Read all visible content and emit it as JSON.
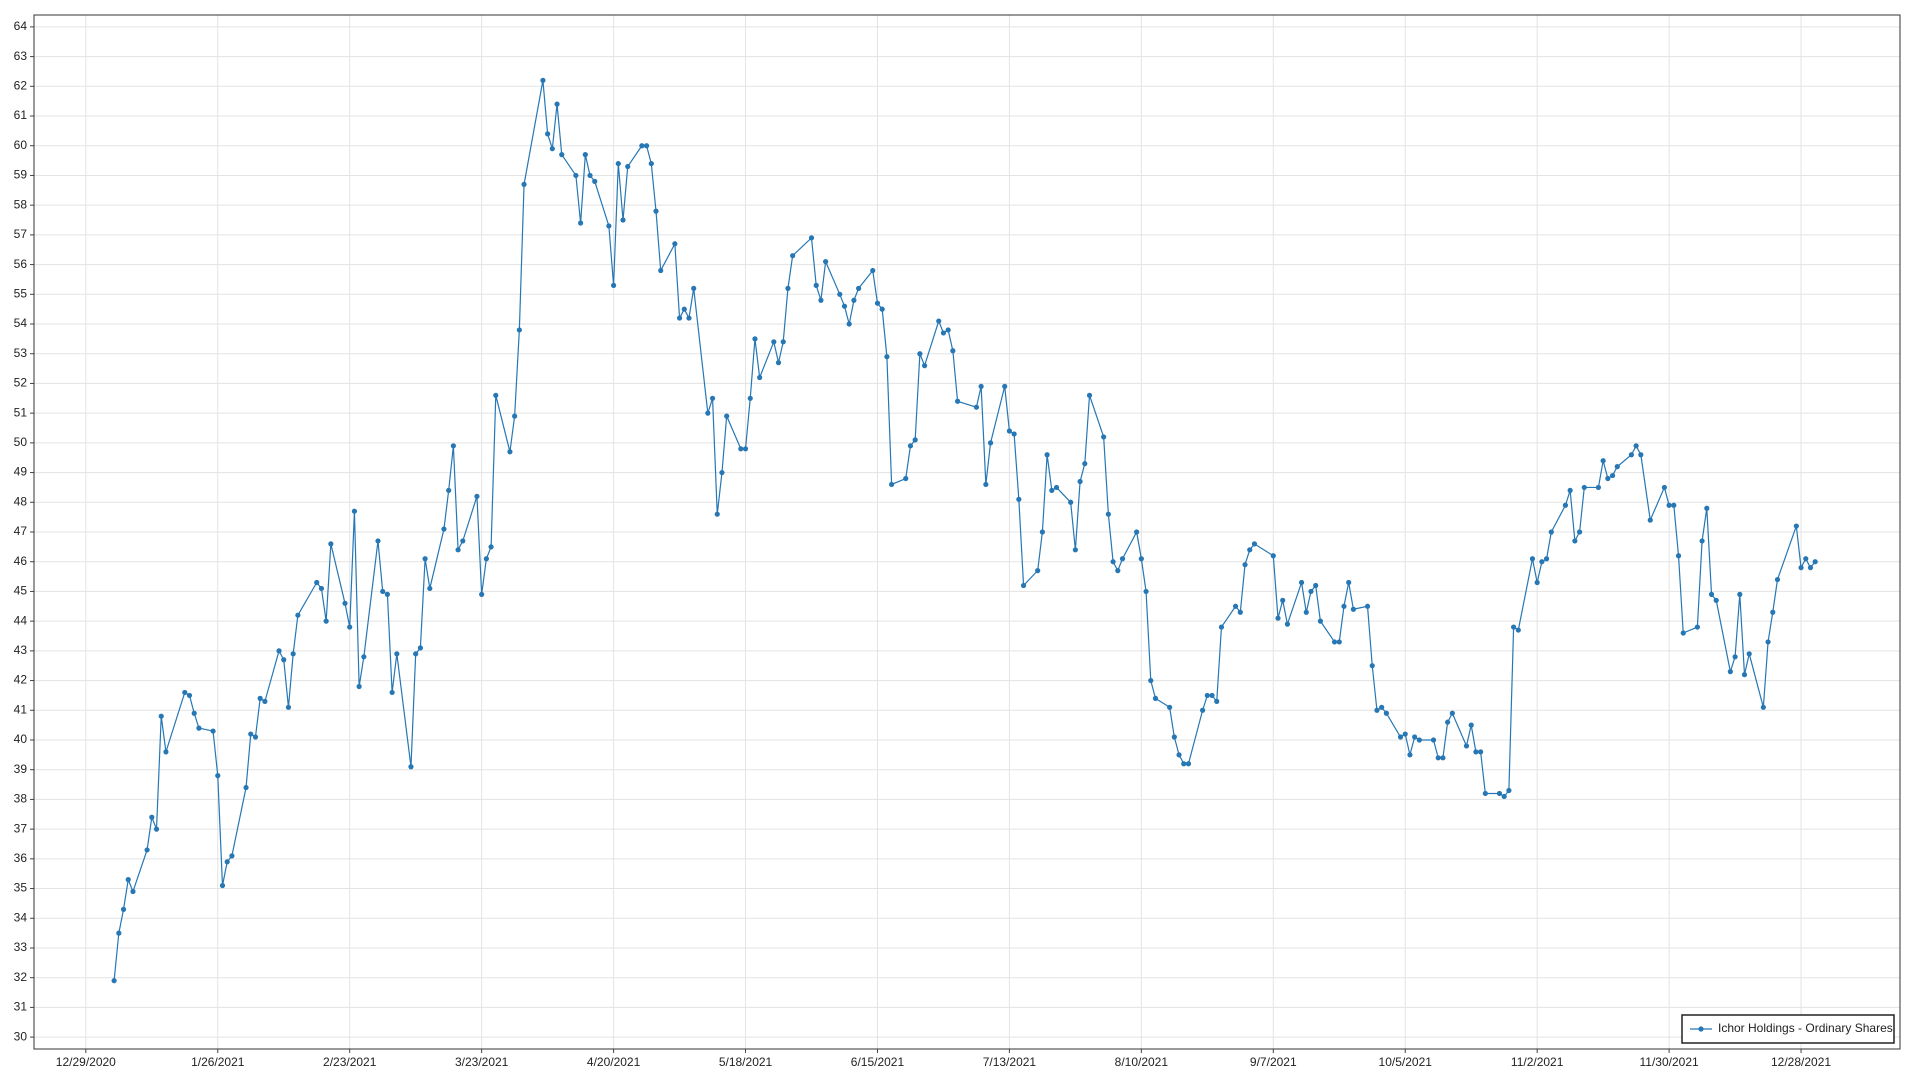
{
  "chart_data": {
    "type": "line",
    "grid": true,
    "legend": "lower right",
    "xlim": [
      "12/18/2020",
      "1/18/2022"
    ],
    "xticks": [
      "12/29/2020",
      "1/26/2021",
      "2/23/2021",
      "3/23/2021",
      "4/20/2021",
      "5/18/2021",
      "6/15/2021",
      "7/13/2021",
      "8/10/2021",
      "9/7/2021",
      "10/5/2021",
      "11/2/2021",
      "11/30/2021",
      "12/28/2021"
    ],
    "ylim": [
      29.6,
      64.4
    ],
    "yticks": [
      30,
      31,
      32,
      33,
      34,
      35,
      36,
      37,
      38,
      39,
      40,
      41,
      42,
      43,
      44,
      45,
      46,
      47,
      48,
      49,
      50,
      51,
      52,
      53,
      54,
      55,
      56,
      57,
      58,
      59,
      60,
      61,
      62,
      63,
      64
    ],
    "x": [
      "1/4/2021",
      "1/5/2021",
      "1/6/2021",
      "1/7/2021",
      "1/8/2021",
      "1/11/2021",
      "1/12/2021",
      "1/13/2021",
      "1/14/2021",
      "1/15/2021",
      "1/19/2021",
      "1/20/2021",
      "1/21/2021",
      "1/22/2021",
      "1/25/2021",
      "1/26/2021",
      "1/27/2021",
      "1/28/2021",
      "1/29/2021",
      "2/1/2021",
      "2/2/2021",
      "2/3/2021",
      "2/4/2021",
      "2/5/2021",
      "2/8/2021",
      "2/9/2021",
      "2/10/2021",
      "2/11/2021",
      "2/12/2021",
      "2/16/2021",
      "2/17/2021",
      "2/18/2021",
      "2/19/2021",
      "2/22/2021",
      "2/23/2021",
      "2/24/2021",
      "2/25/2021",
      "2/26/2021",
      "3/1/2021",
      "3/2/2021",
      "3/3/2021",
      "3/4/2021",
      "3/5/2021",
      "3/8/2021",
      "3/9/2021",
      "3/10/2021",
      "3/11/2021",
      "3/12/2021",
      "3/15/2021",
      "3/16/2021",
      "3/17/2021",
      "3/18/2021",
      "3/19/2021",
      "3/22/2021",
      "3/23/2021",
      "3/24/2021",
      "3/25/2021",
      "3/26/2021",
      "3/29/2021",
      "3/30/2021",
      "3/31/2021",
      "4/1/2021",
      "4/5/2021",
      "4/6/2021",
      "4/7/2021",
      "4/8/2021",
      "4/9/2021",
      "4/12/2021",
      "4/13/2021",
      "4/14/2021",
      "4/15/2021",
      "4/16/2021",
      "4/19/2021",
      "4/20/2021",
      "4/21/2021",
      "4/22/2021",
      "4/23/2021",
      "4/26/2021",
      "4/27/2021",
      "4/28/2021",
      "4/29/2021",
      "4/30/2021",
      "5/3/2021",
      "5/4/2021",
      "5/5/2021",
      "5/6/2021",
      "5/7/2021",
      "5/10/2021",
      "5/11/2021",
      "5/12/2021",
      "5/13/2021",
      "5/14/2021",
      "5/17/2021",
      "5/18/2021",
      "5/19/2021",
      "5/20/2021",
      "5/21/2021",
      "5/24/2021",
      "5/25/2021",
      "5/26/2021",
      "5/27/2021",
      "5/28/2021",
      "6/1/2021",
      "6/2/2021",
      "6/3/2021",
      "6/4/2021",
      "6/7/2021",
      "6/8/2021",
      "6/9/2021",
      "6/10/2021",
      "6/11/2021",
      "6/14/2021",
      "6/15/2021",
      "6/16/2021",
      "6/17/2021",
      "6/18/2021",
      "6/21/2021",
      "6/22/2021",
      "6/23/2021",
      "6/24/2021",
      "6/25/2021",
      "6/28/2021",
      "6/29/2021",
      "6/30/2021",
      "7/1/2021",
      "7/2/2021",
      "7/6/2021",
      "7/7/2021",
      "7/8/2021",
      "7/9/2021",
      "7/12/2021",
      "7/13/2021",
      "7/14/2021",
      "7/15/2021",
      "7/16/2021",
      "7/19/2021",
      "7/20/2021",
      "7/21/2021",
      "7/22/2021",
      "7/23/2021",
      "7/26/2021",
      "7/27/2021",
      "7/28/2021",
      "7/29/2021",
      "7/30/2021",
      "8/2/2021",
      "8/3/2021",
      "8/4/2021",
      "8/5/2021",
      "8/6/2021",
      "8/9/2021",
      "8/10/2021",
      "8/11/2021",
      "8/12/2021",
      "8/13/2021",
      "8/16/2021",
      "8/17/2021",
      "8/18/2021",
      "8/19/2021",
      "8/20/2021",
      "8/23/2021",
      "8/24/2021",
      "8/25/2021",
      "8/26/2021",
      "8/27/2021",
      "8/30/2021",
      "8/31/2021",
      "9/1/2021",
      "9/2/2021",
      "9/3/2021",
      "9/7/2021",
      "9/8/2021",
      "9/9/2021",
      "9/10/2021",
      "9/13/2021",
      "9/14/2021",
      "9/15/2021",
      "9/16/2021",
      "9/17/2021",
      "9/20/2021",
      "9/21/2021",
      "9/22/2021",
      "9/23/2021",
      "9/24/2021",
      "9/27/2021",
      "9/28/2021",
      "9/29/2021",
      "9/30/2021",
      "10/1/2021",
      "10/4/2021",
      "10/5/2021",
      "10/6/2021",
      "10/7/2021",
      "10/8/2021",
      "10/11/2021",
      "10/12/2021",
      "10/13/2021",
      "10/14/2021",
      "10/15/2021",
      "10/18/2021",
      "10/19/2021",
      "10/20/2021",
      "10/21/2021",
      "10/22/2021",
      "10/25/2021",
      "10/26/2021",
      "10/27/2021",
      "10/28/2021",
      "10/29/2021",
      "11/1/2021",
      "11/2/2021",
      "11/3/2021",
      "11/4/2021",
      "11/5/2021",
      "11/8/2021",
      "11/9/2021",
      "11/10/2021",
      "11/11/2021",
      "11/12/2021",
      "11/15/2021",
      "11/16/2021",
      "11/17/2021",
      "11/18/2021",
      "11/19/2021",
      "11/22/2021",
      "11/23/2021",
      "11/24/2021",
      "11/26/2021",
      "11/29/2021",
      "11/30/2021",
      "12/1/2021",
      "12/2/2021",
      "12/3/2021",
      "12/6/2021",
      "12/7/2021",
      "12/8/2021",
      "12/9/2021",
      "12/10/2021",
      "12/13/2021",
      "12/14/2021",
      "12/15/2021",
      "12/16/2021",
      "12/17/2021",
      "12/20/2021",
      "12/21/2021",
      "12/22/2021",
      "12/23/2021",
      "12/27/2021",
      "12/28/2021",
      "12/29/2021",
      "12/30/2021",
      "12/31/2021"
    ],
    "series": [
      {
        "name": "Ichor Holdings - Ordinary Shares",
        "color": "#2677b4",
        "values": [
          31.9,
          33.5,
          34.3,
          35.3,
          34.9,
          36.3,
          37.4,
          37.0,
          40.8,
          39.6,
          41.6,
          41.5,
          40.9,
          40.4,
          40.3,
          38.8,
          35.1,
          35.9,
          36.1,
          38.4,
          40.2,
          40.1,
          41.4,
          41.3,
          43.0,
          42.7,
          41.1,
          42.9,
          44.2,
          45.3,
          45.1,
          44.0,
          46.6,
          44.6,
          43.8,
          47.7,
          41.8,
          42.8,
          46.7,
          45.0,
          44.9,
          41.6,
          42.9,
          39.1,
          42.9,
          43.1,
          46.1,
          45.1,
          47.1,
          48.4,
          49.9,
          46.4,
          46.7,
          48.2,
          44.9,
          46.1,
          46.5,
          51.6,
          49.7,
          50.9,
          53.8,
          58.7,
          62.2,
          60.4,
          59.9,
          61.4,
          59.7,
          59.0,
          57.4,
          59.7,
          59.0,
          58.8,
          57.3,
          55.3,
          59.4,
          57.5,
          59.3,
          60.0,
          60.0,
          59.4,
          57.8,
          55.8,
          56.7,
          54.2,
          54.5,
          54.2,
          55.2,
          51.0,
          51.5,
          47.6,
          49.0,
          50.9,
          49.8,
          49.8,
          51.5,
          53.5,
          52.2,
          53.4,
          52.7,
          53.4,
          55.2,
          56.3,
          56.9,
          55.3,
          54.8,
          56.1,
          55.0,
          54.6,
          54.0,
          54.8,
          55.2,
          55.8,
          54.7,
          54.5,
          52.9,
          48.6,
          48.8,
          49.9,
          50.1,
          53.0,
          52.6,
          54.1,
          53.7,
          53.8,
          53.1,
          51.4,
          51.2,
          51.9,
          48.6,
          50.0,
          51.9,
          50.4,
          50.3,
          48.1,
          45.2,
          45.7,
          47.0,
          49.6,
          48.4,
          48.5,
          48.0,
          46.4,
          48.7,
          49.3,
          51.6,
          50.2,
          47.6,
          46.0,
          45.7,
          46.1,
          47.0,
          46.1,
          45.0,
          42.0,
          41.4,
          41.1,
          40.1,
          39.5,
          39.2,
          39.2,
          41.0,
          41.5,
          41.5,
          41.3,
          43.8,
          44.5,
          44.3,
          45.9,
          46.4,
          46.6,
          46.2,
          44.1,
          44.7,
          43.9,
          45.3,
          44.3,
          45.0,
          45.2,
          44.0,
          43.3,
          43.3,
          44.5,
          45.3,
          44.4,
          44.5,
          42.5,
          41.0,
          41.1,
          40.9,
          40.1,
          40.2,
          39.5,
          40.1,
          40.0,
          40.0,
          39.4,
          39.4,
          40.6,
          40.9,
          39.8,
          40.5,
          39.6,
          39.6,
          38.2,
          38.2,
          38.1,
          38.3,
          43.8,
          43.7,
          46.1,
          45.3,
          46.0,
          46.1,
          47.0,
          47.9,
          48.4,
          46.7,
          47.0,
          48.5,
          48.5,
          49.4,
          48.8,
          48.9,
          49.2,
          49.6,
          49.9,
          49.6,
          47.4,
          48.5,
          47.9,
          47.9,
          46.2,
          43.6,
          43.8,
          46.7,
          47.8,
          44.9,
          44.7,
          42.3,
          42.8,
          44.9,
          42.2,
          42.9,
          41.1,
          43.3,
          44.3,
          45.4,
          47.2,
          45.8,
          46.1,
          45.8,
          46.0
        ]
      }
    ]
  }
}
